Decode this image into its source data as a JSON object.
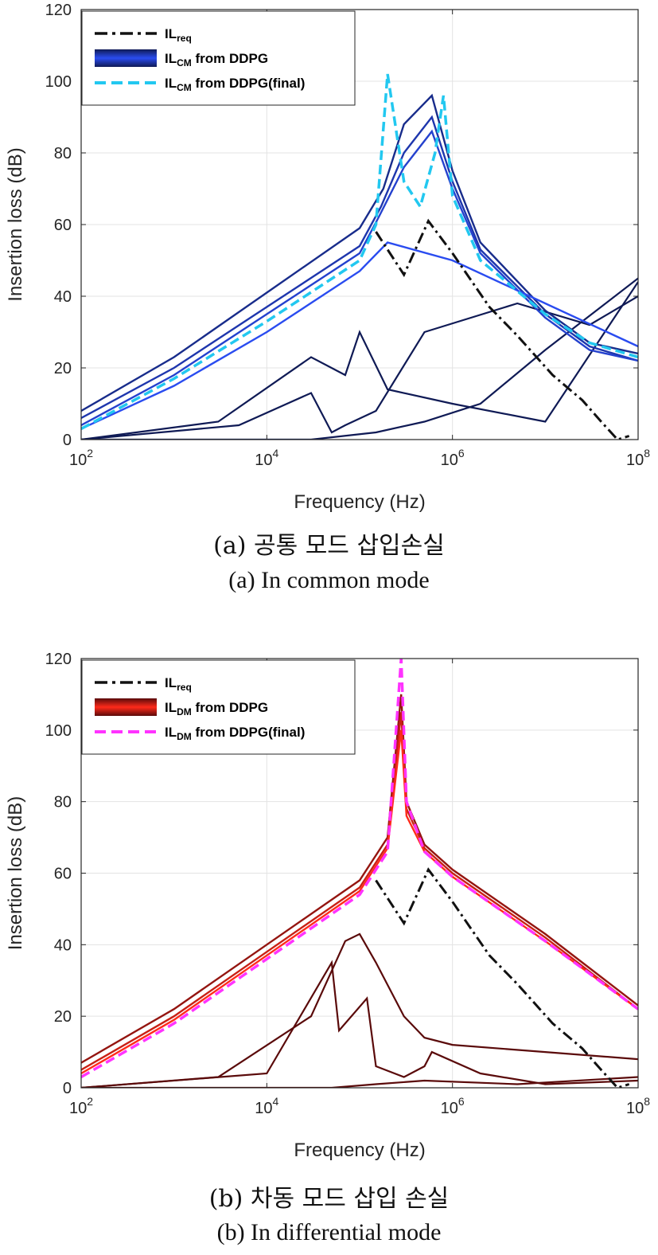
{
  "captions": {
    "a_korean": "(a) 공통 모드 삽입손실",
    "a_english": "(a) In common mode",
    "b_korean": "(b) 차동 모드 삽입 손실",
    "b_english": "(b) In differential mode"
  },
  "chart_data": [
    {
      "type": "line",
      "xlabel": "Frequency (Hz)",
      "ylabel": "Insertion loss (dB)",
      "xscale": "log",
      "xlim": [
        100,
        100000000
      ],
      "ylim": [
        0,
        120
      ],
      "x_tick_labels": [
        {
          "base": "10",
          "exp": "2"
        },
        {
          "base": "10",
          "exp": "4"
        },
        {
          "base": "10",
          "exp": "6"
        },
        {
          "base": "10",
          "exp": "8"
        }
      ],
      "y_tick_labels": [
        "0",
        "20",
        "40",
        "60",
        "80",
        "100",
        "120"
      ],
      "grid": true,
      "legend_position": "top-left",
      "legend": [
        {
          "main": "IL",
          "sub": "req",
          "rest": "",
          "color": "#111111",
          "style": "dashdot"
        },
        {
          "main": "IL",
          "sub": "CM",
          "rest": " from DDPG",
          "color": "#1f3fd6",
          "style": "band"
        },
        {
          "main": "IL",
          "sub": "CM",
          "rest": " from DDPG(final)",
          "color": "#22c8f0",
          "style": "dashed"
        }
      ],
      "colors": {
        "band_dark": "#0f1a55",
        "band_light": "#2a4cf0",
        "final": "#22c8f0",
        "req": "#111111"
      },
      "req_curve": {
        "x": [
          150000,
          300000,
          550000,
          1000000,
          2500000,
          5000000,
          12000000,
          25000000,
          40000000,
          60000000,
          80000000
        ],
        "y": [
          58,
          46,
          61,
          52,
          37,
          29,
          18,
          11,
          5,
          0,
          1
        ]
      },
      "final_curve": {
        "x": [
          100,
          1000,
          10000,
          100000,
          150000,
          200000,
          300000,
          450000,
          650000,
          800000,
          1000000,
          2000000,
          10000000,
          30000000,
          100000000
        ],
        "y": [
          3,
          17,
          33,
          50,
          60,
          102,
          72,
          65,
          80,
          96,
          68,
          50,
          35,
          27,
          23
        ]
      },
      "envelope_curves": [
        {
          "x": [
            100,
            1000,
            10000,
            100000,
            180000,
            300000,
            600000,
            1000000,
            2000000,
            10000000,
            30000000,
            100000000
          ],
          "y": [
            8,
            23,
            41,
            59,
            70,
            88,
            96,
            75,
            55,
            36,
            27,
            24
          ]
        },
        {
          "x": [
            100,
            1000,
            10000,
            100000,
            170000,
            300000,
            600000,
            1000000,
            2000000,
            10000000,
            30000000,
            100000000
          ],
          "y": [
            6,
            20,
            37,
            54,
            65,
            80,
            90,
            72,
            53,
            35,
            26,
            22
          ]
        },
        {
          "x": [
            100,
            1000,
            10000,
            100000,
            160000,
            300000,
            600000,
            1000000,
            2000000,
            10000000,
            30000000,
            100000000
          ],
          "y": [
            4,
            18,
            35,
            52,
            62,
            76,
            86,
            70,
            52,
            34,
            25,
            22
          ]
        },
        {
          "x": [
            100,
            1000,
            10000,
            100000,
            200000,
            1000000,
            10000000,
            100000000
          ],
          "y": [
            3,
            15,
            30,
            47,
            55,
            50,
            38,
            26
          ]
        }
      ],
      "low_curves": [
        {
          "x": [
            100,
            3000,
            30000,
            70000,
            100000,
            200000,
            1000000,
            10000000,
            100000000
          ],
          "y": [
            0,
            5,
            23,
            18,
            30,
            14,
            10,
            5,
            44
          ]
        },
        {
          "x": [
            100,
            5000,
            30000,
            50000,
            70000,
            150000,
            500000,
            5000000,
            30000000,
            100000000
          ],
          "y": [
            0,
            4,
            13,
            2,
            4,
            8,
            30,
            38,
            32,
            40
          ]
        },
        {
          "x": [
            100,
            30000,
            150000,
            500000,
            2000000,
            10000000,
            100000000
          ],
          "y": [
            0,
            0,
            2,
            5,
            10,
            25,
            45
          ]
        }
      ]
    },
    {
      "type": "line",
      "xlabel": "Frequency (Hz)",
      "ylabel": "Insertion loss (dB)",
      "xscale": "log",
      "xlim": [
        100,
        100000000
      ],
      "ylim": [
        0,
        120
      ],
      "x_tick_labels": [
        {
          "base": "10",
          "exp": "2"
        },
        {
          "base": "10",
          "exp": "4"
        },
        {
          "base": "10",
          "exp": "6"
        },
        {
          "base": "10",
          "exp": "8"
        }
      ],
      "y_tick_labels": [
        "0",
        "20",
        "40",
        "60",
        "80",
        "100",
        "120"
      ],
      "grid": true,
      "legend_position": "top-left",
      "legend": [
        {
          "main": "IL",
          "sub": "req",
          "rest": "",
          "color": "#111111",
          "style": "dashdot"
        },
        {
          "main": "IL",
          "sub": "DM",
          "rest": " from DDPG",
          "color": "#d41a10",
          "style": "band"
        },
        {
          "main": "IL",
          "sub": "DM",
          "rest": " from DDPG(final)",
          "color": "#ff33ff",
          "style": "dashed"
        }
      ],
      "colors": {
        "band_dark": "#5a0a0a",
        "band_light": "#ff2a1a",
        "final": "#ff33ff",
        "req": "#111111"
      },
      "req_curve": {
        "x": [
          150000,
          300000,
          550000,
          1000000,
          2500000,
          5000000,
          12000000,
          25000000,
          40000000,
          60000000,
          80000000
        ],
        "y": [
          58,
          46,
          61,
          52,
          37,
          29,
          18,
          11,
          5,
          0,
          1
        ]
      },
      "final_curve": {
        "x": [
          100,
          1000,
          10000,
          100000,
          200000,
          280000,
          320000,
          500000,
          1000000,
          10000000,
          100000000
        ],
        "y": [
          3,
          18,
          36,
          54,
          66,
          120,
          80,
          66,
          59,
          41,
          22
        ]
      },
      "envelope_curves": [
        {
          "x": [
            100,
            1000,
            10000,
            100000,
            200000,
            280000,
            320000,
            500000,
            1000000,
            10000000,
            100000000
          ],
          "y": [
            7,
            22,
            40,
            58,
            70,
            110,
            80,
            68,
            61,
            43,
            23
          ]
        },
        {
          "x": [
            100,
            1000,
            10000,
            100000,
            200000,
            280000,
            320000,
            500000,
            1000000,
            10000000,
            100000000
          ],
          "y": [
            5,
            20,
            38,
            56,
            68,
            105,
            78,
            67,
            60,
            42,
            22
          ]
        },
        {
          "x": [
            100,
            1000,
            10000,
            100000,
            200000,
            280000,
            320000,
            500000,
            1000000,
            10000000,
            100000000
          ],
          "y": [
            4,
            19,
            37,
            55,
            67,
            100,
            76,
            66,
            59,
            41,
            22
          ]
        }
      ],
      "low_curves": [
        {
          "x": [
            100,
            3000,
            30000,
            70000,
            100000,
            150000,
            300000,
            500000,
            1000000,
            10000000,
            100000000
          ],
          "y": [
            0,
            3,
            20,
            41,
            43,
            35,
            20,
            14,
            12,
            10,
            8
          ]
        },
        {
          "x": [
            100,
            10000,
            50000,
            60000,
            120000,
            150000,
            300000,
            500000,
            600000,
            2000000,
            10000000,
            100000000
          ],
          "y": [
            0,
            4,
            35,
            16,
            25,
            6,
            3,
            6,
            10,
            4,
            1,
            2
          ]
        },
        {
          "x": [
            100,
            50000,
            150000,
            500000,
            5000000,
            100000000
          ],
          "y": [
            0,
            0,
            1,
            2,
            1,
            3
          ]
        }
      ]
    }
  ]
}
